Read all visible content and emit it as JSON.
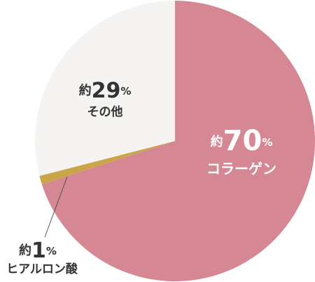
{
  "chart_data": {
    "type": "pie",
    "categories": [
      "コラーゲン",
      "ヒアルロン酸",
      "その他"
    ],
    "values": [
      70,
      1,
      29
    ],
    "value_labels": [
      "約70%",
      "約1%",
      "約29%"
    ],
    "colors": [
      "#d58794",
      "#c9a64a",
      "#f5f4f2"
    ]
  }
}
